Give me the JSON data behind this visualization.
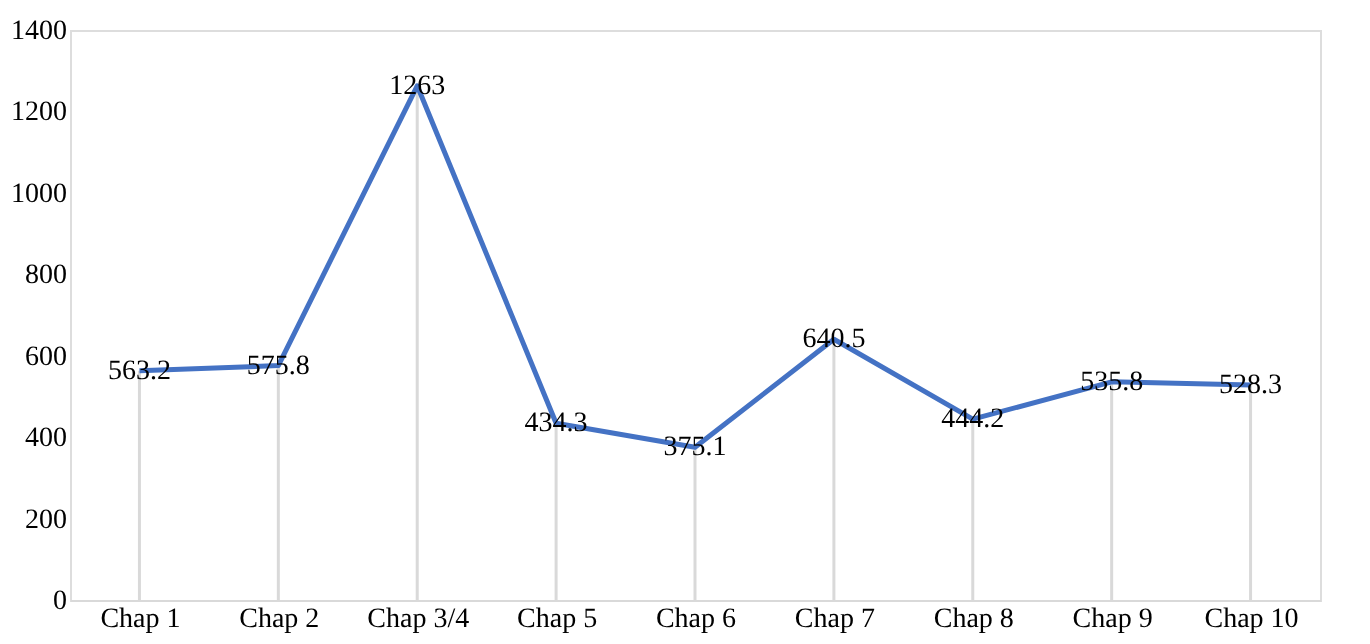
{
  "chart_data": {
    "type": "line",
    "categories": [
      "Chap 1",
      "Chap 2",
      "Chap 3/4",
      "Chap  5",
      "Chap 6",
      "Chap 7",
      "Chap 8",
      "Chap 9",
      "Chap 10"
    ],
    "series": [
      {
        "color": "#4472c4",
        "values": [
          563.2,
          575.8,
          1263,
          434.3,
          375.1,
          640.5,
          444.2,
          535.8,
          528.3
        ]
      }
    ],
    "ylim": [
      0,
      1400
    ],
    "yticks": [
      0,
      200,
      400,
      600,
      800,
      1000,
      1200,
      1400
    ],
    "grid": "x",
    "legend": false,
    "marker": "none",
    "line_style": "solid",
    "data_labels": true
  }
}
